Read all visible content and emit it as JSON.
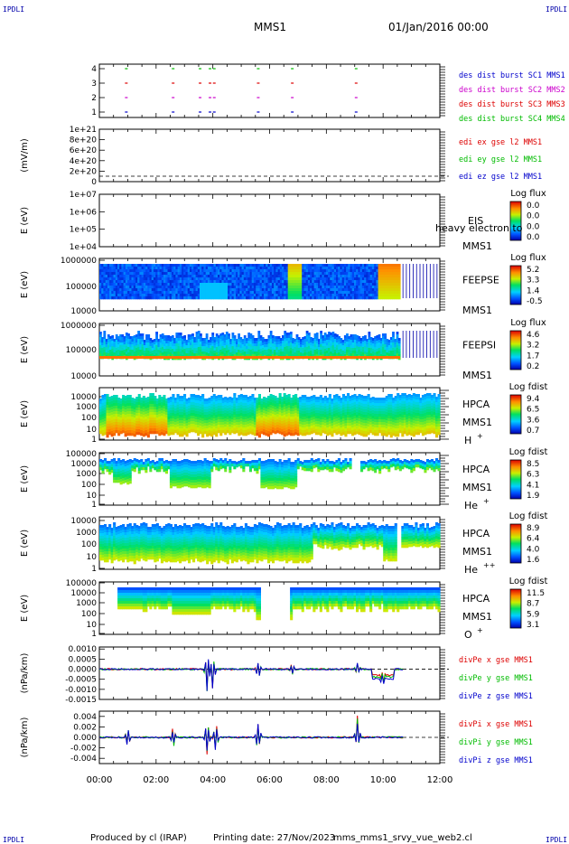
{
  "header": {
    "corner_left": "IPDLI",
    "corner_right": "IPDLI",
    "title": "MMS1",
    "date": "01/Jan/2016 00:00"
  },
  "footer": {
    "produced": "Produced by cl (IRAP)",
    "printing": "Printing date: 27/Nov/2023",
    "filename": "mms_mms1_srvy_vue_web2.cl",
    "corner_left": "IPDLI",
    "corner_right": "IPDLI"
  },
  "time_axis": {
    "ticks": [
      "00:00",
      "02:00",
      "04:00",
      "06:00",
      "08:00",
      "10:00",
      "12:00"
    ],
    "range_h": [
      0,
      12
    ]
  },
  "colors": {
    "blue": "#0000cc",
    "magenta": "#cc00cc",
    "red": "#dd0000",
    "green": "#00bb00"
  },
  "chart_data": [
    {
      "type": "scatter",
      "id": "burst",
      "yticks": [
        "4",
        "3",
        "2",
        "1"
      ],
      "series": [
        {
          "name": "des dist burst SC1 MMS1",
          "level": 1,
          "color": "blue"
        },
        {
          "name": "des dist burst SC2 MMS2",
          "level": 2,
          "color": "magenta"
        },
        {
          "name": "des dist burst SC3 MMS3",
          "level": 3,
          "color": "red"
        },
        {
          "name": "des dist burst SC4 MMS4",
          "level": 4,
          "color": "green"
        }
      ],
      "x": [
        0.95,
        2.6,
        3.55,
        3.9,
        4.05,
        5.6,
        6.8,
        9.05
      ]
    },
    {
      "type": "line",
      "id": "edi",
      "ylabel": "(mV/m)",
      "yticks": [
        "1e+21",
        "8e+20",
        "6e+20",
        "4e+20",
        "2e+20",
        "0"
      ],
      "series": [
        {
          "name": "edi ex gse l2 MMS1",
          "color": "red"
        },
        {
          "name": "edi ey gse l2 MMS1",
          "color": "green"
        },
        {
          "name": "edi ez gse l2 MMS1",
          "color": "blue"
        }
      ]
    },
    {
      "type": "heatmap",
      "id": "eis",
      "ylabel": "E (eV)",
      "yticks": [
        "1e+07",
        "1e+06",
        "1e+05",
        "1e+04"
      ],
      "instrument": "EIS",
      "probe": "MMS1",
      "overlay": "heavy electron to",
      "cbar_title": "Log flux",
      "cbar_ticks": [
        "0.0",
        "0.0",
        "0.0",
        "0.0"
      ]
    },
    {
      "type": "heatmap",
      "id": "feepse",
      "ylabel": "E (eV)",
      "yticks": [
        "1000000",
        "100000",
        "10000"
      ],
      "instrument": "FEEPSE",
      "probe": "MMS1",
      "cbar_title": "Log flux",
      "cbar_ticks": [
        "5.2",
        "3.3",
        "1.4",
        "-0.5"
      ]
    },
    {
      "type": "heatmap",
      "id": "feepsi",
      "ylabel": "E (eV)",
      "yticks": [
        "1000000",
        "100000",
        "10000"
      ],
      "instrument": "FEEPSI",
      "probe": "MMS1",
      "cbar_title": "Log flux",
      "cbar_ticks": [
        "4.6",
        "3.2",
        "1.7",
        "0.2"
      ]
    },
    {
      "type": "heatmap",
      "id": "hpca_h",
      "ylabel": "E (eV)",
      "yticks": [
        "10000",
        "1000",
        "100",
        "10",
        "1"
      ],
      "instrument": "HPCA",
      "probe": "MMS1",
      "species": "H",
      "charge": "+",
      "cbar_title": "Log fdist",
      "cbar_ticks": [
        "9.4",
        "6.5",
        "3.6",
        "0.7"
      ]
    },
    {
      "type": "heatmap",
      "id": "hpca_he",
      "ylabel": "E (eV)",
      "yticks": [
        "100000",
        "10000",
        "1000",
        "100",
        "10",
        "1"
      ],
      "instrument": "HPCA",
      "probe": "MMS1",
      "species": "He",
      "charge": "+",
      "cbar_title": "Log fdist",
      "cbar_ticks": [
        "8.5",
        "6.3",
        "4.1",
        "1.9"
      ]
    },
    {
      "type": "heatmap",
      "id": "hpca_hepp",
      "ylabel": "E (eV)",
      "yticks": [
        "10000",
        "1000",
        "100",
        "10",
        "1"
      ],
      "instrument": "HPCA",
      "probe": "MMS1",
      "species": "He",
      "charge": "++",
      "cbar_title": "Log fdist",
      "cbar_ticks": [
        "8.9",
        "6.4",
        "4.0",
        "1.6"
      ]
    },
    {
      "type": "heatmap",
      "id": "hpca_o",
      "ylabel": "E (eV)",
      "yticks": [
        "100000",
        "10000",
        "1000",
        "100",
        "10",
        "1"
      ],
      "instrument": "HPCA",
      "probe": "MMS1",
      "species": "O",
      "charge": "+",
      "cbar_title": "Log fdist",
      "cbar_ticks": [
        "11.5",
        "8.7",
        "5.9",
        "3.1"
      ]
    },
    {
      "type": "line",
      "id": "divpe",
      "ylabel": "(nPa/km)",
      "yticks": [
        "0.0010",
        "0.0005",
        "0.0000",
        "-0.0005",
        "-0.0010",
        "-0.0015"
      ],
      "ylim": [
        -0.0015,
        0.0011
      ],
      "series": [
        {
          "name": "divPe x gse MMS1",
          "color": "red"
        },
        {
          "name": "divPe y gse MMS1",
          "color": "green"
        },
        {
          "name": "divPe z gse MMS1",
          "color": "blue"
        }
      ]
    },
    {
      "type": "line",
      "id": "divpi",
      "ylabel": "(nPa/km)",
      "yticks": [
        "0.004",
        "0.002",
        "0.000",
        "-0.002",
        "-0.004"
      ],
      "ylim": [
        -0.005,
        0.005
      ],
      "series": [
        {
          "name": "divPi x gse MMS1",
          "color": "red"
        },
        {
          "name": "divPi y gse MMS1",
          "color": "green"
        },
        {
          "name": "divPi z gse MMS1",
          "color": "blue"
        }
      ]
    }
  ]
}
